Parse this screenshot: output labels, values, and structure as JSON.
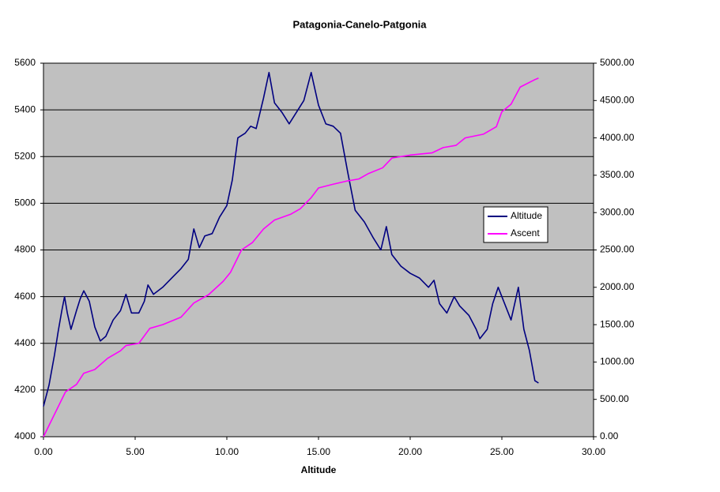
{
  "chart_data": {
    "type": "line",
    "title": "Patagonia-Canelo-Patgonia",
    "x_label": "Altitude",
    "xlim": [
      0,
      30
    ],
    "xticks": [
      {
        "value": 0,
        "label": "0.00"
      },
      {
        "value": 5,
        "label": "5.00"
      },
      {
        "value": 10,
        "label": "10.00"
      },
      {
        "value": 15,
        "label": "15.00"
      },
      {
        "value": 20,
        "label": "20.00"
      },
      {
        "value": 25,
        "label": "25.00"
      },
      {
        "value": 30,
        "label": "30.00"
      }
    ],
    "ylim": [
      4000,
      5600
    ],
    "yticks": [
      4000,
      4200,
      4400,
      4600,
      4800,
      5000,
      5200,
      5400,
      5600
    ],
    "y2lim": [
      0,
      5000
    ],
    "y2ticks": [
      {
        "value": 0,
        "label": "0.00"
      },
      {
        "value": 500,
        "label": "500.00"
      },
      {
        "value": 1000,
        "label": "1000.00"
      },
      {
        "value": 1500,
        "label": "1500.00"
      },
      {
        "value": 2000,
        "label": "2000.00"
      },
      {
        "value": 2500,
        "label": "2500.00"
      },
      {
        "value": 3000,
        "label": "3000.00"
      },
      {
        "value": 3500,
        "label": "3500.00"
      },
      {
        "value": 4000,
        "label": "4000.00"
      },
      {
        "value": 4500,
        "label": "4500.00"
      },
      {
        "value": 5000,
        "label": "5000.00"
      }
    ],
    "grid": true,
    "legend": "right",
    "series": [
      {
        "name": "Altitude",
        "color": "#000080",
        "x": [
          0,
          0.3,
          0.6,
          0.8,
          1.0,
          1.15,
          1.3,
          1.5,
          1.8,
          2.0,
          2.2,
          2.5,
          2.8,
          3.1,
          3.4,
          3.8,
          4.2,
          4.5,
          4.8,
          5.2,
          5.5,
          5.7,
          6.0,
          6.5,
          7.0,
          7.5,
          7.9,
          8.2,
          8.5,
          8.8,
          9.2,
          9.6,
          10.0,
          10.3,
          10.6,
          11.0,
          11.3,
          11.6,
          12.0,
          12.3,
          12.6,
          13.0,
          13.4,
          13.8,
          14.2,
          14.6,
          15.0,
          15.4,
          15.8,
          16.2,
          16.6,
          17.0,
          17.5,
          18.0,
          18.4,
          18.7,
          19.0,
          19.5,
          20.0,
          20.5,
          21.0,
          21.3,
          21.6,
          22.0,
          22.4,
          22.7,
          23.2,
          23.6,
          23.8,
          24.2,
          24.5,
          24.8,
          25.2,
          25.5,
          25.9,
          26.2,
          26.5,
          26.8,
          27.0
        ],
        "values": [
          4130,
          4220,
          4350,
          4450,
          4540,
          4600,
          4530,
          4460,
          4540,
          4590,
          4625,
          4580,
          4470,
          4410,
          4430,
          4500,
          4540,
          4610,
          4530,
          4530,
          4580,
          4650,
          4610,
          4640,
          4680,
          4720,
          4760,
          4890,
          4810,
          4860,
          4870,
          4940,
          4990,
          5100,
          5280,
          5300,
          5330,
          5320,
          5450,
          5560,
          5430,
          5390,
          5340,
          5390,
          5440,
          5560,
          5420,
          5340,
          5330,
          5300,
          5130,
          4970,
          4920,
          4850,
          4800,
          4900,
          4780,
          4730,
          4700,
          4680,
          4640,
          4670,
          4570,
          4530,
          4600,
          4560,
          4520,
          4460,
          4420,
          4460,
          4570,
          4640,
          4560,
          4500,
          4640,
          4460,
          4370,
          4240,
          4230
        ]
      },
      {
        "name": "Ascent",
        "color": "#ff00ff",
        "axis": "y2",
        "x": [
          0,
          0.5,
          0.9,
          1.2,
          1.8,
          2.2,
          2.8,
          3.5,
          4.2,
          4.5,
          5.2,
          5.8,
          6.5,
          7.5,
          8.2,
          9.0,
          9.8,
          10.2,
          10.8,
          11.4,
          12.0,
          12.6,
          13.5,
          14.0,
          14.6,
          15.0,
          15.8,
          16.5,
          17.2,
          17.7,
          18.5,
          19.0,
          20.0,
          21.2,
          21.8,
          22.5,
          23.0,
          24.0,
          24.7,
          25.0,
          25.5,
          26.0,
          26.8,
          27.0
        ],
        "values": [
          0,
          250,
          450,
          600,
          700,
          850,
          900,
          1050,
          1150,
          1220,
          1250,
          1450,
          1500,
          1600,
          1790,
          1900,
          2080,
          2200,
          2500,
          2600,
          2780,
          2900,
          2980,
          3050,
          3200,
          3330,
          3380,
          3420,
          3450,
          3520,
          3600,
          3730,
          3770,
          3800,
          3870,
          3900,
          4000,
          4050,
          4150,
          4350,
          4450,
          4680,
          4780,
          4800
        ]
      }
    ]
  }
}
